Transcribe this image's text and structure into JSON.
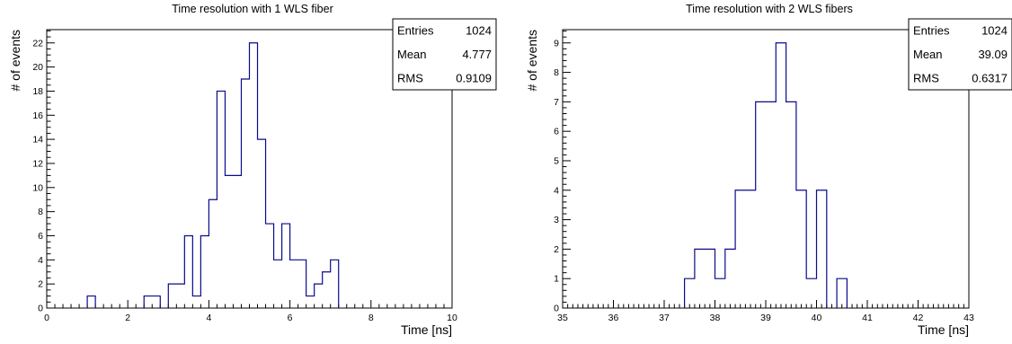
{
  "chart_data": [
    {
      "type": "histogram",
      "title": "Time resolution with 1 WLS fiber",
      "xlabel": "Time [ns]",
      "ylabel": "# of events",
      "xlim": [
        0,
        10
      ],
      "ylim": [
        0,
        23.1
      ],
      "x_ticks": [
        0,
        2,
        4,
        6,
        8,
        10
      ],
      "x_minor_step": 0.2,
      "y_ticks": [
        0,
        2,
        4,
        6,
        8,
        10,
        12,
        14,
        16,
        18,
        20,
        22
      ],
      "y_minor_step": 0.5,
      "bin_width": 0.2,
      "bins": [
        {
          "x": 1.0,
          "y": 1
        },
        {
          "x": 2.4,
          "y": 1
        },
        {
          "x": 2.6,
          "y": 1
        },
        {
          "x": 3.0,
          "y": 2
        },
        {
          "x": 3.2,
          "y": 2
        },
        {
          "x": 3.4,
          "y": 6
        },
        {
          "x": 3.6,
          "y": 1
        },
        {
          "x": 3.8,
          "y": 6
        },
        {
          "x": 4.0,
          "y": 9
        },
        {
          "x": 4.2,
          "y": 18
        },
        {
          "x": 4.4,
          "y": 11
        },
        {
          "x": 4.6,
          "y": 11
        },
        {
          "x": 4.8,
          "y": 19
        },
        {
          "x": 5.0,
          "y": 22
        },
        {
          "x": 5.2,
          "y": 14
        },
        {
          "x": 5.4,
          "y": 7
        },
        {
          "x": 5.6,
          "y": 4
        },
        {
          "x": 5.8,
          "y": 7
        },
        {
          "x": 6.0,
          "y": 4
        },
        {
          "x": 6.2,
          "y": 4
        },
        {
          "x": 6.4,
          "y": 1
        },
        {
          "x": 6.6,
          "y": 2
        },
        {
          "x": 6.8,
          "y": 3
        },
        {
          "x": 7.0,
          "y": 4
        }
      ],
      "stats": [
        {
          "label": "Entries",
          "value": "1024"
        },
        {
          "label": "Mean",
          "value": "4.777"
        },
        {
          "label": "RMS",
          "value": "0.9109"
        }
      ]
    },
    {
      "type": "histogram",
      "title": "Time resolution with 2 WLS fibers",
      "xlabel": "Time [ns]",
      "ylabel": "# of events",
      "xlim": [
        35,
        43
      ],
      "ylim": [
        0,
        9.45
      ],
      "x_ticks": [
        35,
        36,
        37,
        38,
        39,
        40,
        41,
        42,
        43
      ],
      "x_minor_step": 0.1,
      "y_ticks": [
        0,
        1,
        2,
        3,
        4,
        5,
        6,
        7,
        8,
        9
      ],
      "y_minor_step": 0.2,
      "bin_width": 0.2,
      "bins": [
        {
          "x": 37.4,
          "y": 1
        },
        {
          "x": 37.6,
          "y": 2
        },
        {
          "x": 37.8,
          "y": 2
        },
        {
          "x": 38.0,
          "y": 1
        },
        {
          "x": 38.2,
          "y": 2
        },
        {
          "x": 38.4,
          "y": 4
        },
        {
          "x": 38.6,
          "y": 4
        },
        {
          "x": 38.8,
          "y": 7
        },
        {
          "x": 39.0,
          "y": 7
        },
        {
          "x": 39.2,
          "y": 9
        },
        {
          "x": 39.4,
          "y": 7
        },
        {
          "x": 39.6,
          "y": 4
        },
        {
          "x": 39.8,
          "y": 1
        },
        {
          "x": 40.0,
          "y": 4
        },
        {
          "x": 40.4,
          "y": 1
        }
      ],
      "stats": [
        {
          "label": "Entries",
          "value": "1024"
        },
        {
          "label": "Mean",
          "value": "39.09"
        },
        {
          "label": "RMS",
          "value": "0.6317"
        }
      ]
    }
  ]
}
